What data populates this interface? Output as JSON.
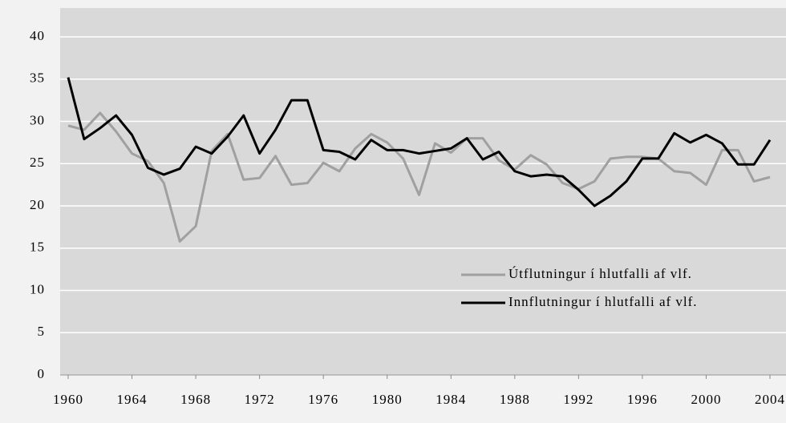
{
  "chart_data": {
    "type": "line",
    "x": [
      1960,
      1961,
      1962,
      1963,
      1964,
      1965,
      1966,
      1967,
      1968,
      1969,
      1970,
      1971,
      1972,
      1973,
      1974,
      1975,
      1976,
      1977,
      1978,
      1979,
      1980,
      1981,
      1982,
      1983,
      1984,
      1985,
      1986,
      1987,
      1988,
      1989,
      1990,
      1991,
      1992,
      1993,
      1994,
      1995,
      1996,
      1997,
      1998,
      1999,
      2000,
      2001,
      2002,
      2003,
      2004
    ],
    "series": [
      {
        "name": "Útflutningur í hlutfalli af vlf.",
        "color": "#a0a0a0",
        "values": [
          29.5,
          29,
          31,
          28.8,
          26.2,
          25.3,
          22.7,
          15.8,
          17.6,
          26.5,
          28.5,
          23.1,
          23.3,
          25.9,
          22.5,
          22.7,
          25.1,
          24.1,
          26.8,
          28.5,
          27.5,
          25.6,
          21.3,
          27.4,
          26.3,
          28,
          28,
          25.4,
          24.3,
          26,
          24.9,
          22.7,
          22,
          22.9,
          25.6,
          25.8,
          25.8,
          25.6,
          24.1,
          23.9,
          22.5,
          26.6,
          26.6,
          22.9,
          23.4
        ]
      },
      {
        "name": "Innflutningur í hlutfalli af vlf.",
        "color": "#000000",
        "values": [
          35.2,
          27.9,
          29.2,
          30.7,
          28.4,
          24.5,
          23.7,
          24.4,
          27,
          26.2,
          28.2,
          30.7,
          26.2,
          29,
          32.5,
          32.5,
          26.6,
          26.4,
          25.5,
          27.8,
          26.6,
          26.6,
          26.2,
          26.5,
          26.8,
          28,
          25.5,
          26.4,
          24.1,
          23.5,
          23.7,
          23.5,
          21.9,
          20,
          21.2,
          22.9,
          25.6,
          25.6,
          28.6,
          27.5,
          28.4,
          27.4,
          24.9,
          24.9,
          27.8
        ]
      }
    ],
    "xlim": [
      1960,
      2004
    ],
    "xticks": [
      1960,
      1964,
      1968,
      1972,
      1976,
      1980,
      1984,
      1988,
      1992,
      1996,
      2000,
      2004
    ],
    "ylim": [
      0,
      40
    ],
    "yticks": [
      0,
      5,
      10,
      15,
      20,
      25,
      30,
      35,
      40
    ],
    "grid": true,
    "legend": "right"
  }
}
